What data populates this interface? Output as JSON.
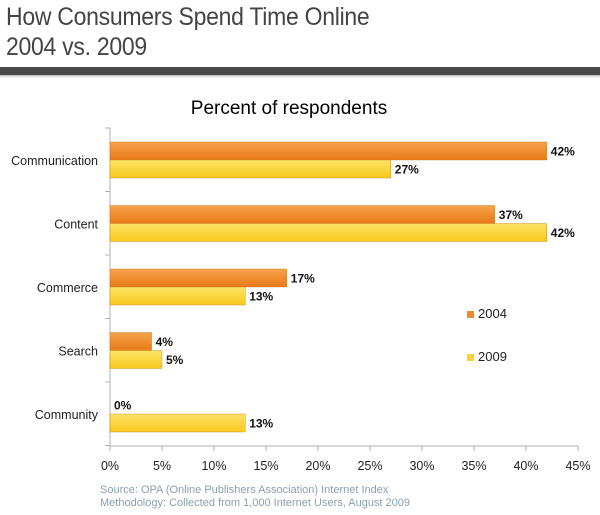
{
  "header": {
    "title_line1": "How Consumers Spend Time Online",
    "title_line2": "2004 vs. 2009"
  },
  "chart_data": {
    "type": "bar",
    "orientation": "horizontal",
    "title": "Percent of respondents",
    "categories": [
      "Communication",
      "Content",
      "Commerce",
      "Search",
      "Community"
    ],
    "series": [
      {
        "name": "2004",
        "values": [
          42,
          37,
          17,
          4,
          0
        ],
        "color": "#f08a2a",
        "labels": [
          "42%",
          "37%",
          "17%",
          "4%",
          "0%"
        ]
      },
      {
        "name": "2009",
        "values": [
          27,
          42,
          13,
          5,
          13
        ],
        "color": "#fcd232",
        "labels": [
          "27%",
          "42%",
          "13%",
          "5%",
          "13%"
        ]
      }
    ],
    "xlim": [
      0,
      45
    ],
    "x_ticks": [
      "0%",
      "5%",
      "10%",
      "15%",
      "20%",
      "25%",
      "30%",
      "35%",
      "40%",
      "45%"
    ],
    "legend_position": "right",
    "grid": false
  },
  "footer": {
    "source_line1": "Source: OPA (Online Publishers Association) Internet Index",
    "source_line2": "Methodology:  Collected from 1,000 Internet Users, August  2009"
  }
}
